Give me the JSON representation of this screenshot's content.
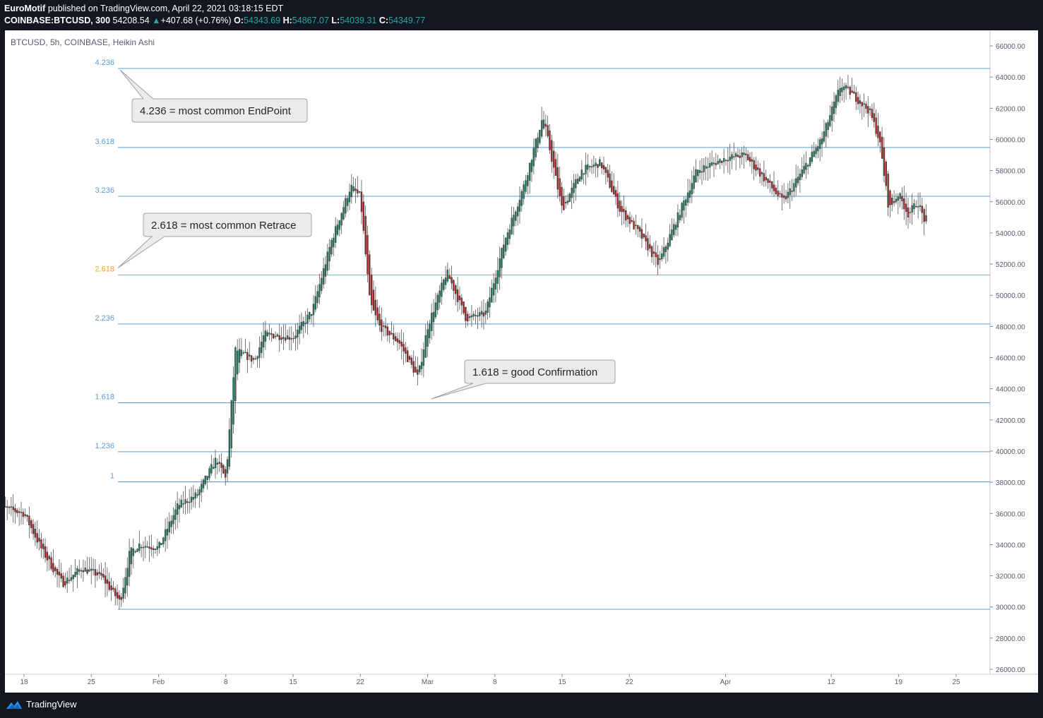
{
  "header": {
    "author": "EuroMotif",
    "published": "published on TradingView.com, April 22, 2021 03:18:15 EDT",
    "symbol_full": "COINBASE:BTCUSD, 300",
    "last": "54208.54",
    "change": "+407.68 (+0.76%)",
    "o_label": "O:",
    "o": "54343.69",
    "h_label": "H:",
    "h": "54867.07",
    "l_label": "L:",
    "l": "54039.31",
    "c_label": "C:",
    "c": "54349.77"
  },
  "chart_title": "BTCUSD, 5h, COINBASE, Heikin Ashi",
  "footer": {
    "brand": "TradingView"
  },
  "colors": {
    "up": "#26775e",
    "down": "#9c2a2a",
    "wick": "#555555",
    "fib_line": "#5b9bd5",
    "fib_highlight": "#f5a623",
    "grid_bg": "#ffffff",
    "frame": "#131722"
  },
  "chart_data": {
    "type": "candlestick",
    "style": "Heikin Ashi",
    "y_axis": {
      "min": 25000,
      "max": 67000,
      "position": "right",
      "ticks": [
        26000,
        28000,
        30000,
        32000,
        34000,
        36000,
        38000,
        40000,
        42000,
        44000,
        46000,
        48000,
        50000,
        52000,
        54000,
        56000,
        58000,
        60000,
        62000,
        64000,
        66000
      ],
      "tick_labels": [
        "26000.00",
        "28000.00",
        "30000.00",
        "32000.00",
        "34000.00",
        "36000.00",
        "38000.00",
        "40000.00",
        "42000.00",
        "44000.00",
        "46000.00",
        "48000.00",
        "50000.00",
        "52000.00",
        "54000.00",
        "56000.00",
        "58000.00",
        "60000.00",
        "62000.00",
        "64000.00",
        "66000.00"
      ]
    },
    "x_axis": {
      "start": "2021-01-15",
      "end": "2021-04-28",
      "ticks": [
        "2021-01-18",
        "2021-01-25",
        "2021-02-01",
        "2021-02-08",
        "2021-02-15",
        "2021-02-22",
        "2021-03-01",
        "2021-03-08",
        "2021-03-15",
        "2021-03-22",
        "2021-04-01",
        "2021-04-12",
        "2021-04-19",
        "2021-04-25"
      ],
      "tick_labels": [
        "18",
        "25",
        "Feb",
        "8",
        "15",
        "22",
        "Mar",
        "8",
        "15",
        "22",
        "Apr",
        "12",
        "19",
        "25"
      ]
    },
    "price_path": [
      [
        "2021-01-15",
        36500
      ],
      [
        "2021-01-18",
        36000
      ],
      [
        "2021-01-20",
        33500
      ],
      [
        "2021-01-22",
        31500
      ],
      [
        "2021-01-24",
        32500
      ],
      [
        "2021-01-26",
        32000
      ],
      [
        "2021-01-28",
        30300
      ],
      [
        "2021-01-29",
        33500
      ],
      [
        "2021-01-30",
        34000
      ],
      [
        "2021-02-01",
        33800
      ],
      [
        "2021-02-03",
        36500
      ],
      [
        "2021-02-05",
        37200
      ],
      [
        "2021-02-07",
        39500
      ],
      [
        "2021-02-08",
        38200
      ],
      [
        "2021-02-09",
        46500
      ],
      [
        "2021-02-11",
        45800
      ],
      [
        "2021-02-12",
        47500
      ],
      [
        "2021-02-15",
        47300
      ],
      [
        "2021-02-17",
        49000
      ],
      [
        "2021-02-19",
        53500
      ],
      [
        "2021-02-21",
        57000
      ],
      [
        "2021-02-22",
        56300
      ],
      [
        "2021-02-23",
        49500
      ],
      [
        "2021-02-24",
        48000
      ],
      [
        "2021-02-26",
        47000
      ],
      [
        "2021-02-28",
        44700
      ],
      [
        "2021-03-01",
        48000
      ],
      [
        "2021-03-03",
        51500
      ],
      [
        "2021-03-05",
        48500
      ],
      [
        "2021-03-07",
        48800
      ],
      [
        "2021-03-09",
        53500
      ],
      [
        "2021-03-11",
        57000
      ],
      [
        "2021-03-13",
        61500
      ],
      [
        "2021-03-15",
        55500
      ],
      [
        "2021-03-17",
        58000
      ],
      [
        "2021-03-19",
        58500
      ],
      [
        "2021-03-21",
        55500
      ],
      [
        "2021-03-23",
        54000
      ],
      [
        "2021-03-25",
        52000
      ],
      [
        "2021-03-27",
        55000
      ],
      [
        "2021-03-29",
        58000
      ],
      [
        "2021-04-01",
        58800
      ],
      [
        "2021-04-03",
        59000
      ],
      [
        "2021-04-05",
        57500
      ],
      [
        "2021-04-07",
        56000
      ],
      [
        "2021-04-09",
        58000
      ],
      [
        "2021-04-11",
        60000
      ],
      [
        "2021-04-13",
        63500
      ],
      [
        "2021-04-14",
        63000
      ],
      [
        "2021-04-16",
        61800
      ],
      [
        "2021-04-17",
        60000
      ],
      [
        "2021-04-18",
        55500
      ],
      [
        "2021-04-19",
        56500
      ],
      [
        "2021-04-20",
        55200
      ],
      [
        "2021-04-21",
        56000
      ],
      [
        "2021-04-22",
        54300
      ]
    ],
    "fib_levels": [
      {
        "label": "4.236",
        "price": 64550,
        "highlight": false
      },
      {
        "label": "3.618",
        "price": 59480,
        "highlight": false
      },
      {
        "label": "3.236",
        "price": 56350,
        "highlight": false
      },
      {
        "label": "2.618",
        "price": 51300,
        "highlight": true
      },
      {
        "label": "2.236",
        "price": 48160,
        "highlight": false
      },
      {
        "label": "1.618",
        "price": 43100,
        "highlight": false
      },
      {
        "label": "1.236",
        "price": 39960,
        "highlight": false
      },
      {
        "label": "1",
        "price": 38030,
        "highlight": false
      },
      {
        "label": "",
        "price": 29850,
        "highlight": false
      }
    ],
    "annotations": [
      {
        "text": "4.236 = most common EndPoint",
        "target_level": "4.236"
      },
      {
        "text": "2.618 = most common Retrace",
        "target_level": "2.618"
      },
      {
        "text": "1.618 = good Confirmation",
        "target_level": "1.618"
      }
    ]
  }
}
